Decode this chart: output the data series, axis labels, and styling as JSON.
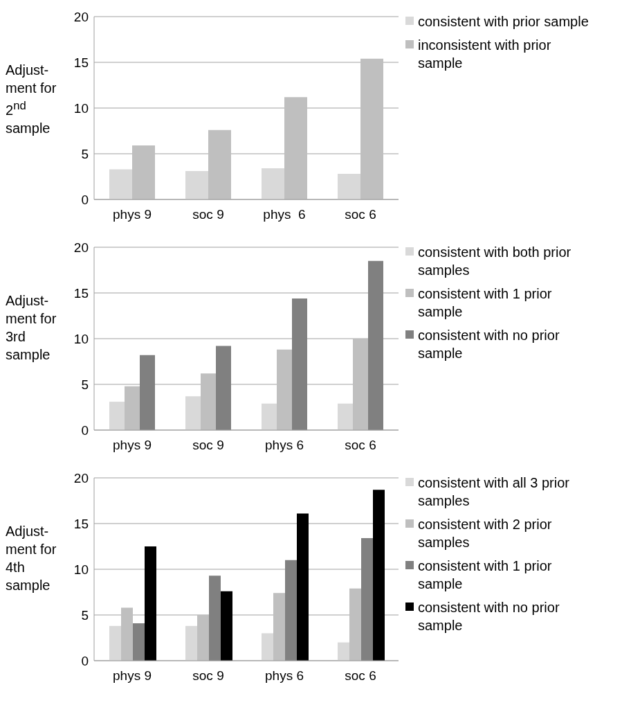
{
  "chart_data": [
    {
      "type": "bar",
      "ylabel": "Adjust-ment for 2$^{nd}$ sample",
      "categories": [
        "phys 9",
        "soc 9",
        "phys  6",
        "soc 6"
      ],
      "ylim": [
        0,
        20
      ],
      "yticks": [
        0,
        5,
        10,
        15,
        20
      ],
      "grid": "y",
      "legend": "right",
      "series": [
        {
          "name": "consistent with prior sample",
          "color": "#d9d9d9",
          "values": [
            3.3,
            3.1,
            3.4,
            2.8
          ]
        },
        {
          "name": "inconsistent with prior sample",
          "color": "#bfbfbf",
          "values": [
            5.9,
            7.6,
            11.2,
            15.4
          ]
        }
      ]
    },
    {
      "type": "bar",
      "ylabel": "Adjust-ment for 3rd sample",
      "categories": [
        "phys 9",
        "soc 9",
        "phys 6",
        "soc 6"
      ],
      "ylim": [
        0,
        20
      ],
      "yticks": [
        0,
        5,
        10,
        15,
        20
      ],
      "grid": "y",
      "legend": "right",
      "series": [
        {
          "name": "consistent with both prior samples",
          "color": "#d9d9d9",
          "values": [
            3.1,
            3.7,
            2.9,
            2.9
          ]
        },
        {
          "name": "consistent with 1 prior sample",
          "color": "#bfbfbf",
          "values": [
            4.8,
            6.2,
            8.8,
            10.0
          ]
        },
        {
          "name": "consistent with no prior sample",
          "color": "#808080",
          "values": [
            8.2,
            9.2,
            14.4,
            18.5
          ]
        }
      ]
    },
    {
      "type": "bar",
      "ylabel": "Adjust-ment for 4th sample",
      "categories": [
        "phys 9",
        "soc 9",
        "phys 6",
        "soc 6"
      ],
      "ylim": [
        0,
        20
      ],
      "yticks": [
        0,
        5,
        10,
        15,
        20
      ],
      "grid": "y",
      "legend": "right",
      "series": [
        {
          "name": "consistent with all 3 prior samples",
          "color": "#d9d9d9",
          "values": [
            3.8,
            3.8,
            3.0,
            2.0
          ]
        },
        {
          "name": "consistent with 2 prior samples",
          "color": "#bfbfbf",
          "values": [
            5.8,
            5.0,
            7.4,
            7.9
          ]
        },
        {
          "name": "consistent with 1 prior sample",
          "color": "#808080",
          "values": [
            4.1,
            9.3,
            11.0,
            13.4
          ]
        },
        {
          "name": "consistent with no prior sample",
          "color": "#000000",
          "values": [
            12.5,
            7.6,
            16.1,
            18.7
          ]
        }
      ]
    }
  ]
}
